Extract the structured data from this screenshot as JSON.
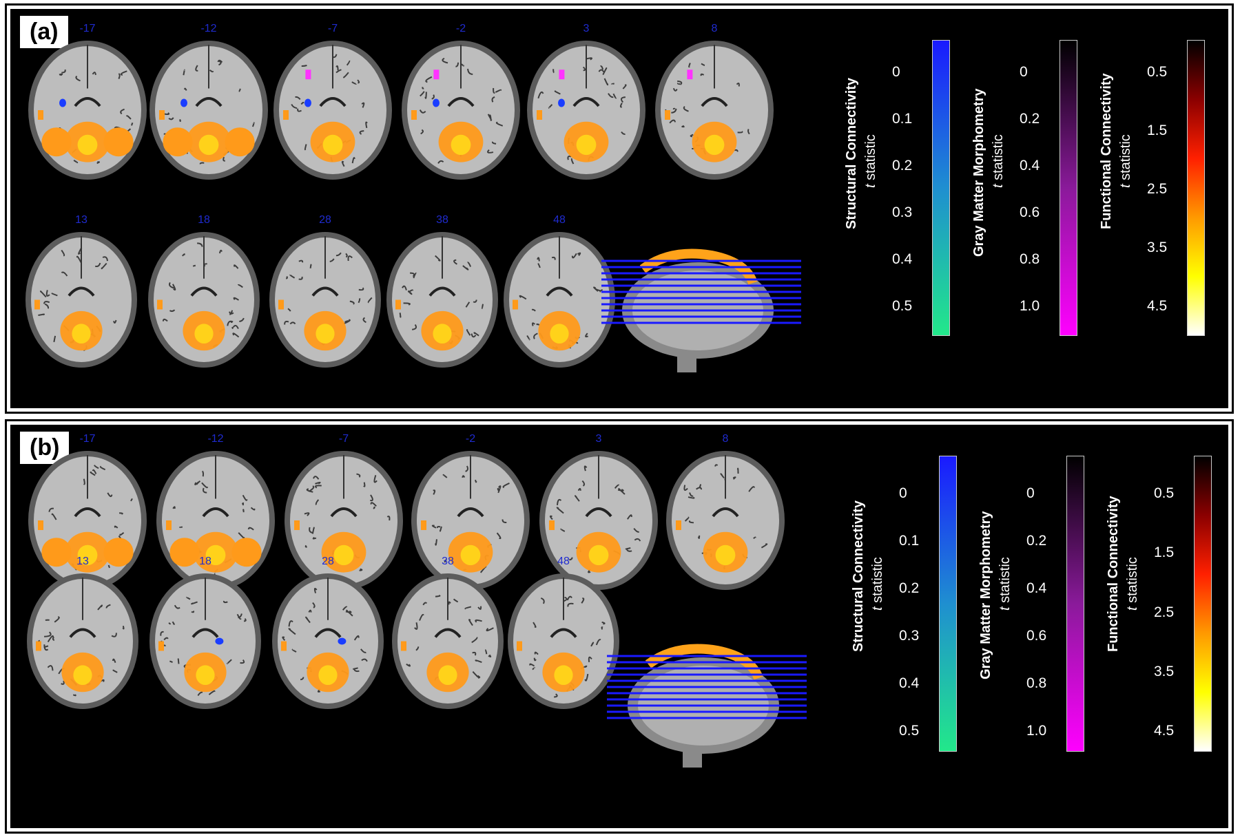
{
  "panels": [
    {
      "label": "(a)",
      "slices_top": [
        "-17",
        "-12",
        "-7",
        "-2",
        "3",
        "8"
      ],
      "slices_bottom": [
        "13",
        "18",
        "28",
        "38",
        "48"
      ]
    },
    {
      "label": "(b)",
      "slices_top": [
        "-17",
        "-12",
        "-7",
        "-2",
        "3",
        "8"
      ],
      "slices_bottom": [
        "13",
        "18",
        "28",
        "38",
        "48"
      ]
    }
  ],
  "colorbars": {
    "structural": {
      "title": "Structural Connectivity",
      "subtitle_italic": "t",
      "subtitle_rest": " statistic",
      "ticks": [
        "0",
        "0.1",
        "0.2",
        "0.3",
        "0.4",
        "0.5"
      ],
      "colors": [
        "#1a1aff",
        "#1f8fd0",
        "#22e88a"
      ]
    },
    "gray_matter": {
      "title": "Gray Matter Morphometry",
      "subtitle_italic": "t",
      "subtitle_rest": " statistic",
      "ticks": [
        "0",
        "0.2",
        "0.4",
        "0.6",
        "0.8",
        "1.0"
      ],
      "colors": [
        "#000000",
        "#8a1a9a",
        "#ff00ff"
      ]
    },
    "functional": {
      "title": "Functional Connectivity",
      "subtitle_italic": "t",
      "subtitle_rest": " statistic",
      "ticks": [
        "0.5",
        "1.5",
        "2.5",
        "3.5",
        "4.5"
      ],
      "colors": [
        "#000000",
        "#8b0000",
        "#ff2000",
        "#ff9900",
        "#ffff00",
        "#ffffff"
      ]
    }
  },
  "colors": {
    "background": "#000000",
    "slice_number": "#1f2bd0",
    "activation": "#ff9a1a",
    "structural_blob": "#1a3dff",
    "gm_blob": "#ff33ff"
  }
}
